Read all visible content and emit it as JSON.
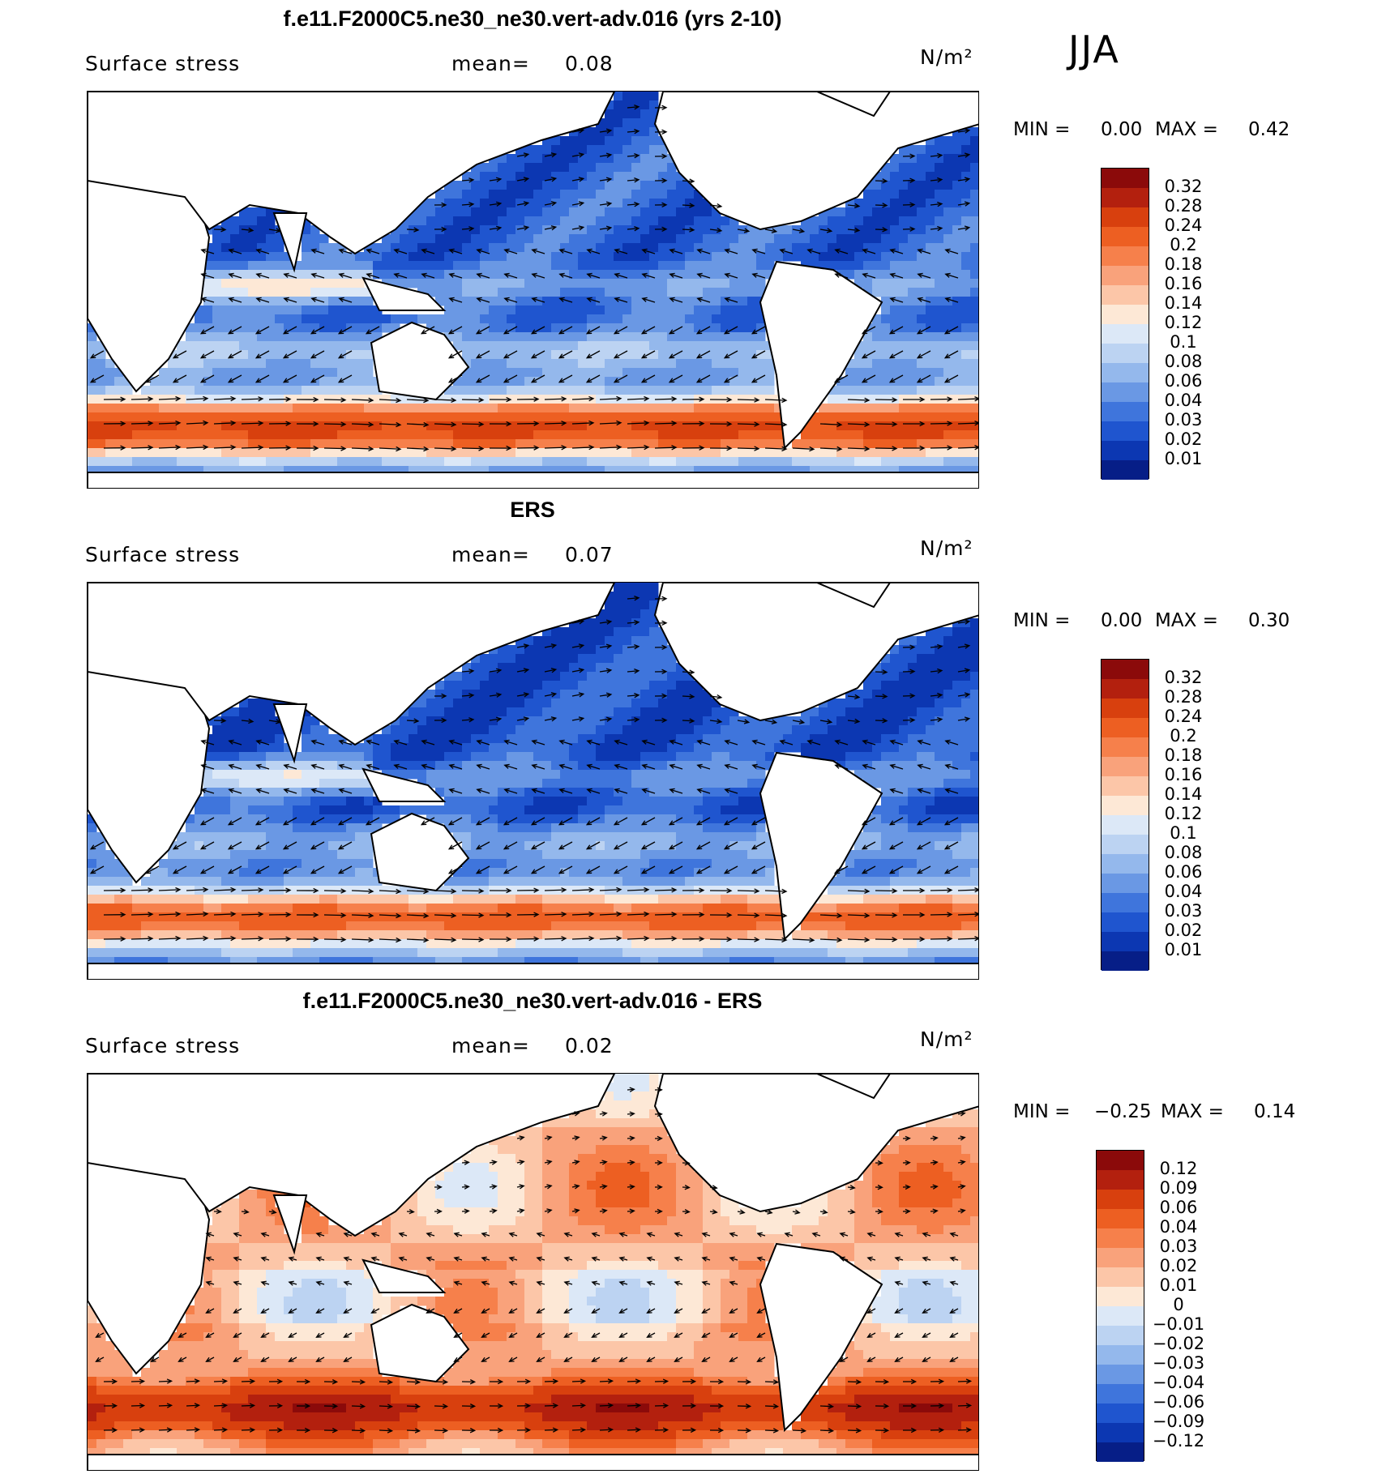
{
  "season": "JJA",
  "units": "N/m²",
  "variable": "Surface stress",
  "mean_label": "mean=",
  "panels": [
    {
      "title": "f.e11.F2000C5.ne30_ne30.vert-adv.016 (yrs 2-10)",
      "mean": "0.08",
      "min_label": "MIN =",
      "min": "0.00",
      "max_label": "MAX =",
      "max": "0.42",
      "levels": [
        "0.32",
        "0.28",
        "0.24",
        "0.2",
        "0.18",
        "0.16",
        "0.14",
        "0.12",
        "0.1",
        "0.08",
        "0.06",
        "0.04",
        "0.03",
        "0.02",
        "0.01"
      ],
      "colors": [
        "#8b0a0a",
        "#b3200e",
        "#d8400e",
        "#ed5f22",
        "#f6804b",
        "#f9a27b",
        "#fcc6a8",
        "#fde8d6",
        "#dce8f7",
        "#bcd3f2",
        "#94b8ec",
        "#6a98e4",
        "#3f75dc",
        "#1f55cf",
        "#0c37b2",
        "#061e87"
      ]
    },
    {
      "title": "ERS",
      "mean": "0.07",
      "min_label": "MIN =",
      "min": "0.00",
      "max_label": "MAX =",
      "max": "0.30",
      "levels": [
        "0.32",
        "0.28",
        "0.24",
        "0.2",
        "0.18",
        "0.16",
        "0.14",
        "0.12",
        "0.1",
        "0.08",
        "0.06",
        "0.04",
        "0.03",
        "0.02",
        "0.01"
      ],
      "colors": [
        "#8b0a0a",
        "#b3200e",
        "#d8400e",
        "#ed5f22",
        "#f6804b",
        "#f9a27b",
        "#fcc6a8",
        "#fde8d6",
        "#dce8f7",
        "#bcd3f2",
        "#94b8ec",
        "#6a98e4",
        "#3f75dc",
        "#1f55cf",
        "#0c37b2",
        "#061e87"
      ]
    },
    {
      "title": "f.e11.F2000C5.ne30_ne30.vert-adv.016 - ERS",
      "mean": "0.02",
      "min_label": "MIN =",
      "min": "−0.25",
      "max_label": "MAX =",
      "max": "0.14",
      "levels": [
        "0.12",
        "0.09",
        "0.06",
        "0.04",
        "0.03",
        "0.02",
        "0.01",
        "0",
        "−0.01",
        "−0.02",
        "−0.03",
        "−0.04",
        "−0.06",
        "−0.09",
        "−0.12"
      ],
      "colors": [
        "#8b0a0a",
        "#b3200e",
        "#d8400e",
        "#ed5f22",
        "#f6804b",
        "#f9a27b",
        "#fcc6a8",
        "#fde8d6",
        "#dce8f7",
        "#bcd3f2",
        "#94b8ec",
        "#6a98e4",
        "#3f75dc",
        "#1f55cf",
        "#0c37b2",
        "#061e87"
      ]
    }
  ]
}
